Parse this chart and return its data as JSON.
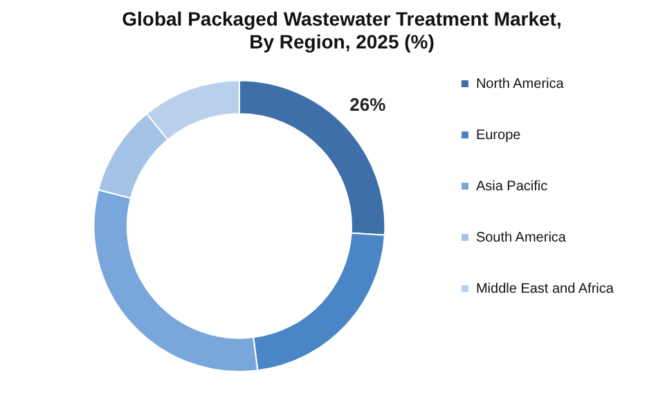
{
  "chart_data": {
    "type": "donut",
    "title": "Global Packaged Wastewater Treatment Market,\nBy Region, 2025 (%)",
    "categories": [
      "North America",
      "Europe",
      "Asia Pacific",
      "South America",
      "Middle East and Africa"
    ],
    "values": [
      26,
      22,
      31,
      10,
      11
    ],
    "colors": [
      "#3f6fa8",
      "#4a86c5",
      "#7aa7db",
      "#a5c3e6",
      "#b9d0ec"
    ],
    "value_labels": [
      "26%",
      null,
      null,
      null,
      null
    ],
    "legend": "right"
  }
}
